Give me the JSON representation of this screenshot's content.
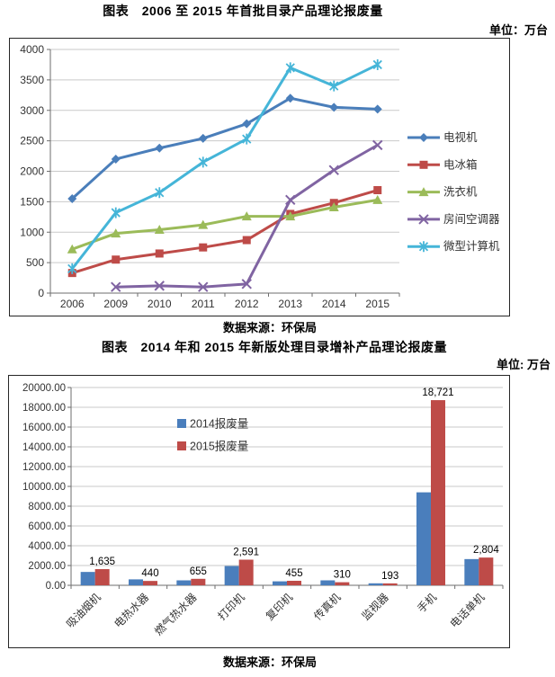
{
  "chart_data": [
    {
      "type": "line",
      "title": "图表　2006 至 2015 年首批目录产品理论报废量",
      "unit": "单位：万台",
      "source": "数据来源：环保局",
      "xlabel": "",
      "ylabel": "",
      "categories": [
        "2006",
        "2009",
        "2010",
        "2011",
        "2012",
        "2013",
        "2014",
        "2015"
      ],
      "series": [
        {
          "name": "电视机",
          "color": "#4A7EBA",
          "marker": "diamond",
          "values": [
            1550,
            2200,
            2380,
            2540,
            2780,
            3200,
            3050,
            3020
          ]
        },
        {
          "name": "电冰箱",
          "color": "#BE4B48",
          "marker": "square",
          "values": [
            330,
            550,
            650,
            750,
            870,
            1300,
            1480,
            1690
          ]
        },
        {
          "name": "洗衣机",
          "color": "#9BBB59",
          "marker": "triangle",
          "values": [
            720,
            980,
            1040,
            1120,
            1260,
            1260,
            1410,
            1530
          ]
        },
        {
          "name": "房间空调器",
          "color": "#8064A2",
          "marker": "x",
          "values": [
            null,
            100,
            120,
            100,
            150,
            1530,
            2020,
            2430
          ]
        },
        {
          "name": "微型计算机",
          "color": "#45B5D8",
          "marker": "asterisk",
          "values": [
            400,
            1320,
            1650,
            2150,
            2530,
            3700,
            3400,
            3750
          ]
        }
      ],
      "ylim": [
        0,
        4000
      ],
      "ystep": 500,
      "ytick_labels": [
        "0",
        "500",
        "1000",
        "1500",
        "2000",
        "2500",
        "3000",
        "3500",
        "4000"
      ],
      "grid": true,
      "legend_position": "right"
    },
    {
      "type": "bar",
      "title": "图表　2014 年和 2015 年新版处理目录增补产品理论报废量",
      "unit": "单位: 万台",
      "source": "数据来源：环保局",
      "xlabel": "",
      "ylabel": "",
      "categories": [
        "吸油烟机",
        "电热水器",
        "燃气热水器",
        "打印机",
        "复印机",
        "传真机",
        "监视器",
        "手机",
        "电话单机"
      ],
      "series": [
        {
          "name": "2014报废量",
          "color": "#4A7EBC",
          "values": [
            1350,
            600,
            500,
            1950,
            400,
            500,
            200,
            9400,
            2650
          ]
        },
        {
          "name": "2015报废量",
          "color": "#BE4B48",
          "values": [
            1635,
            440,
            655,
            2591,
            455,
            310,
            193,
            18721,
            2804
          ],
          "data_labels": [
            "1,635",
            "440",
            "655",
            "2,591",
            "455",
            "310",
            "193",
            "18,721",
            "2,804"
          ]
        }
      ],
      "ylim": [
        0,
        20000
      ],
      "ystep": 2000,
      "ytick_labels": [
        "0.00",
        "2000.00",
        "4000.00",
        "6000.00",
        "8000.00",
        "10000.00",
        "12000.00",
        "14000.00",
        "16000.00",
        "18000.00",
        "20000.00"
      ],
      "grid": true,
      "legend_position": "inside-upper-left"
    }
  ],
  "colors": {
    "gridline": "#C9C9C9",
    "axis": "#6E6E6E",
    "tick_text": "#333333"
  }
}
